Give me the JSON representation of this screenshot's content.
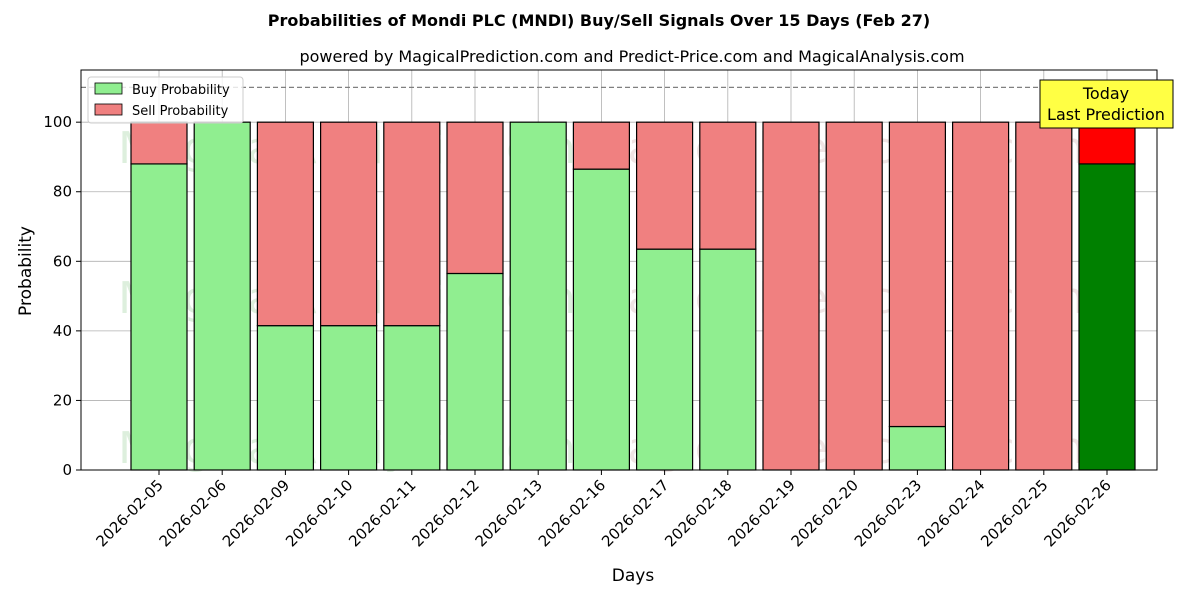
{
  "chart_data": {
    "type": "bar",
    "stacked": true,
    "title": "Probabilities of Mondi PLC (MNDI) Buy/Sell Signals Over 15 Days (Feb 27)",
    "subtitle": "powered by MagicalPrediction.com and Predict-Price.com and MagicalAnalysis.com",
    "xlabel": "Days",
    "ylabel": "Probability",
    "ylim": [
      0,
      115
    ],
    "yticks": [
      0,
      20,
      40,
      60,
      80,
      100
    ],
    "grid": true,
    "legend_position": "top-left",
    "reference_line": 110,
    "categories": [
      "2026-02-05",
      "2026-02-06",
      "2026-02-09",
      "2026-02-10",
      "2026-02-11",
      "2026-02-12",
      "2026-02-13",
      "2026-02-16",
      "2026-02-17",
      "2026-02-18",
      "2026-02-19",
      "2026-02-20",
      "2026-02-23",
      "2026-02-24",
      "2026-02-25",
      "2026-02-26"
    ],
    "series": [
      {
        "name": "Buy Probability",
        "color": "#90ee90",
        "highlight_color": "#008000",
        "values": [
          88,
          100,
          41.5,
          41.5,
          41.5,
          56.5,
          100,
          86.5,
          63.5,
          63.5,
          0,
          0,
          12.5,
          0,
          0,
          88
        ]
      },
      {
        "name": "Sell Probability",
        "color": "#f08080",
        "highlight_color": "#ff0000",
        "values": [
          12,
          0,
          58.5,
          58.5,
          58.5,
          43.5,
          0,
          13.5,
          36.5,
          36.5,
          100,
          100,
          87.5,
          100,
          100,
          12
        ]
      }
    ],
    "annotation": {
      "line1": "Today",
      "line2": "Last Prediction",
      "fill": "#ffff44",
      "target_category": "2026-02-26"
    },
    "watermark": [
      "MagicalAnalysis.com",
      "MagicalPrediction.com"
    ]
  }
}
